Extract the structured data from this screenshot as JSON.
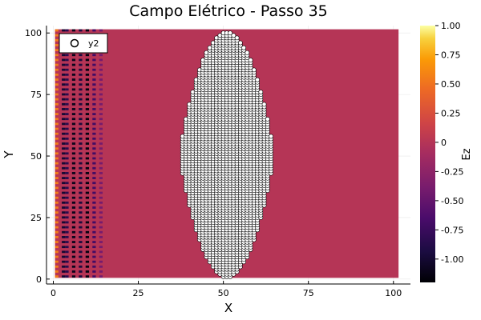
{
  "chart_data": {
    "type": "heatmap",
    "title": "Campo Elétrico - Passo 35",
    "xlabel": "X",
    "ylabel": "Y",
    "colorbar_label": "Ez",
    "xlim": [
      -2,
      105
    ],
    "ylim": [
      -2,
      103
    ],
    "xticks": [
      0,
      25,
      50,
      75,
      100
    ],
    "yticks": [
      0,
      25,
      50,
      75,
      100
    ],
    "colorbar": {
      "range": [
        -1.2,
        1.0
      ],
      "ticks": [
        1.0,
        0.75,
        0.5,
        0.25,
        0,
        -0.25,
        -0.5,
        -0.75,
        -1.0
      ],
      "tick_labels": [
        "1.00",
        "0.75",
        "0.50",
        "0.25",
        "0",
        "-0.25",
        "-0.50",
        "-0.75",
        "-1.00"
      ],
      "colormap": "inferno"
    },
    "field": {
      "x_range": [
        1,
        101
      ],
      "y_range": [
        1,
        101
      ],
      "background_value": 0.0,
      "wave_front_columns": [
        {
          "x": 1,
          "value": 0.55
        },
        {
          "x": 3,
          "value": -1.0
        },
        {
          "x": 4,
          "value": -0.85
        },
        {
          "x": 6,
          "value": -1.1
        },
        {
          "x": 8,
          "value": -0.95
        },
        {
          "x": 10,
          "value": -1.15
        },
        {
          "x": 12,
          "value": -0.7
        },
        {
          "x": 14,
          "value": -0.4
        }
      ]
    },
    "scatter_series": {
      "name": "y2",
      "marker": "circle",
      "marker_fill": "#ffffff",
      "marker_stroke": "#000000",
      "shape": "ellipse",
      "center": [
        51,
        50.5
      ],
      "semi_axes": [
        14,
        50
      ]
    },
    "legend": {
      "position": "top-left",
      "entries": [
        "y2"
      ]
    },
    "grid": true
  }
}
